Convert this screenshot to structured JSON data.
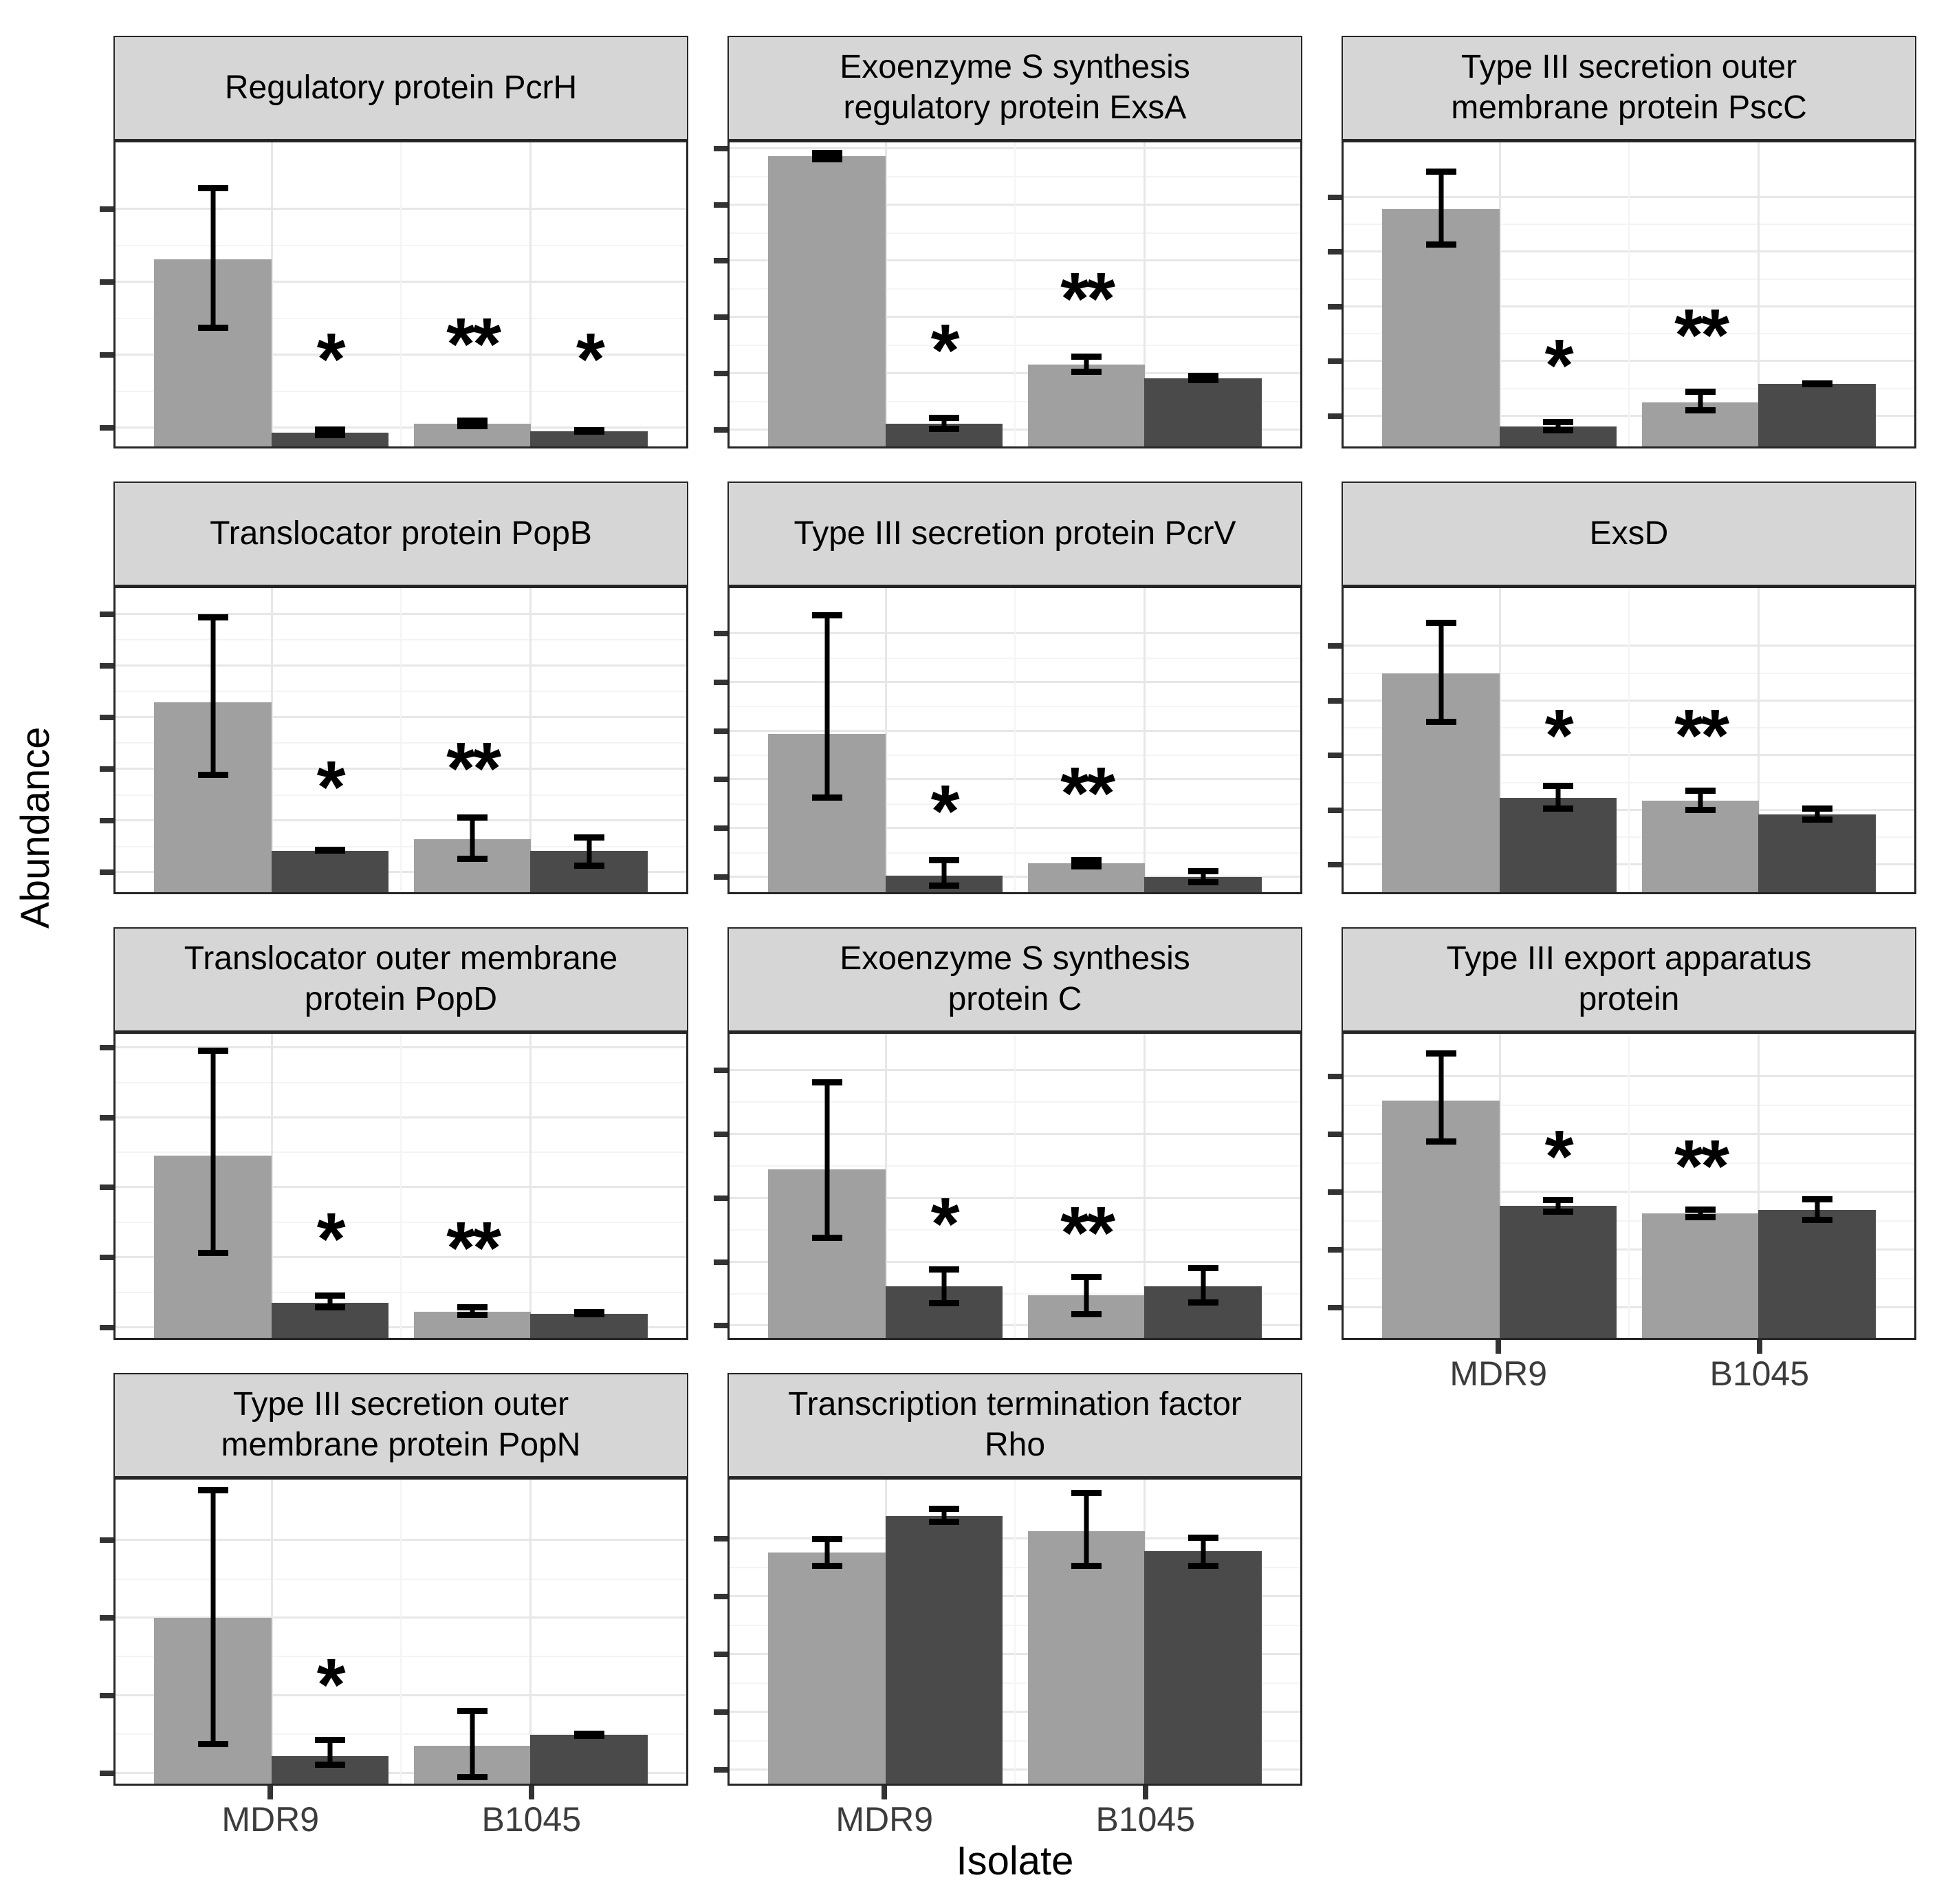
{
  "figure": {
    "y_axis_title": "Abundance",
    "x_axis_title": "Isolate",
    "colors": {
      "bar_light": "#a0a0a0",
      "bar_dark": "#4a4a4a",
      "strip_background": "#d6d6d6",
      "panel_border": "#262626",
      "grid_major": "#e7e7e7",
      "grid_minor": "#f4f4f4",
      "axis_text": "#3c3c3c",
      "error_bar": "#000000",
      "significance_star": "#000000"
    }
  },
  "chart_data": {
    "type": "bar",
    "title": "",
    "xlabel": "Isolate",
    "ylabel": "Abundance",
    "categories": [
      "MDR9",
      "B1045"
    ],
    "series": [
      "light-gray (unlabeled)",
      "dark-gray (unlabeled)"
    ],
    "legend": "none shown",
    "grid": true,
    "y_axis": {
      "tick_labels_shown": false,
      "value_scale": "fraction of panel height (no numeric labels in figure)",
      "range": [
        0,
        1
      ]
    },
    "facet_layout": {
      "columns": 3,
      "rows": 4,
      "last_row_panels": 2
    },
    "facets": [
      {
        "title": "Regulatory protein PcrH",
        "show_x_axis": false,
        "y_ticks": [
          0.06,
          0.3,
          0.54,
          0.78
        ],
        "bars": [
          {
            "category": "MDR9",
            "series": "light-gray",
            "value": 0.615,
            "err_lo": 0.38,
            "err_hi": 0.86
          },
          {
            "category": "MDR9",
            "series": "dark-gray",
            "value": 0.045,
            "err_lo": 0.028,
            "err_hi": 0.065
          },
          {
            "category": "B1045",
            "series": "light-gray",
            "value": 0.075,
            "err_lo": 0.056,
            "err_hi": 0.096
          },
          {
            "category": "B1045",
            "series": "dark-gray",
            "value": 0.05,
            "err_lo": 0.038,
            "err_hi": 0.064
          }
        ],
        "stars": [
          {
            "slot": 1,
            "symbol": "*",
            "y": 0.22
          },
          {
            "slot": 2,
            "symbol": "**",
            "y": 0.27
          },
          {
            "slot": 3,
            "symbol": "*",
            "y": 0.22
          }
        ]
      },
      {
        "title": "Exoenzyme S synthesis regulatory protein ExsA",
        "show_x_axis": false,
        "y_ticks": [
          0.055,
          0.24,
          0.425,
          0.61,
          0.795,
          0.98
        ],
        "bars": [
          {
            "category": "MDR9",
            "series": "light-gray",
            "value": 0.955,
            "err_lo": 0.935,
            "err_hi": 0.975
          },
          {
            "category": "MDR9",
            "series": "dark-gray",
            "value": 0.075,
            "err_lo": 0.048,
            "err_hi": 0.105
          },
          {
            "category": "B1045",
            "series": "light-gray",
            "value": 0.27,
            "err_lo": 0.235,
            "err_hi": 0.305
          },
          {
            "category": "B1045",
            "series": "dark-gray",
            "value": 0.225,
            "err_lo": 0.208,
            "err_hi": 0.243
          }
        ],
        "stars": [
          {
            "slot": 1,
            "symbol": "*",
            "y": 0.25
          },
          {
            "slot": 2,
            "symbol": "**",
            "y": 0.42
          }
        ]
      },
      {
        "title": "Type III secretion outer membrane protein PscC",
        "show_x_axis": false,
        "y_ticks": [
          0.1,
          0.28,
          0.46,
          0.64,
          0.82
        ],
        "bars": [
          {
            "category": "MDR9",
            "series": "light-gray",
            "value": 0.78,
            "err_lo": 0.655,
            "err_hi": 0.915
          },
          {
            "category": "MDR9",
            "series": "dark-gray",
            "value": 0.065,
            "err_lo": 0.044,
            "err_hi": 0.09
          },
          {
            "category": "B1045",
            "series": "light-gray",
            "value": 0.145,
            "err_lo": 0.108,
            "err_hi": 0.19
          },
          {
            "category": "B1045",
            "series": "dark-gray",
            "value": 0.205,
            "err_lo": 0.197,
            "err_hi": 0.216
          }
        ],
        "stars": [
          {
            "slot": 1,
            "symbol": "*",
            "y": 0.2
          },
          {
            "slot": 2,
            "symbol": "**",
            "y": 0.3
          }
        ]
      },
      {
        "title": "Translocator protein PopB",
        "show_x_axis": false,
        "y_ticks": [
          0.065,
          0.235,
          0.405,
          0.575,
          0.745,
          0.915
        ],
        "bars": [
          {
            "category": "MDR9",
            "series": "light-gray",
            "value": 0.625,
            "err_lo": 0.375,
            "err_hi": 0.915
          },
          {
            "category": "MDR9",
            "series": "dark-gray",
            "value": 0.135,
            "err_lo": 0.127,
            "err_hi": 0.149
          },
          {
            "category": "B1045",
            "series": "light-gray",
            "value": 0.175,
            "err_lo": 0.1,
            "err_hi": 0.255
          },
          {
            "category": "B1045",
            "series": "dark-gray",
            "value": 0.135,
            "err_lo": 0.078,
            "err_hi": 0.19
          }
        ],
        "stars": [
          {
            "slot": 1,
            "symbol": "*",
            "y": 0.28
          },
          {
            "slot": 2,
            "symbol": "**",
            "y": 0.34
          }
        ]
      },
      {
        "title": "Type III secretion protein PcrV",
        "show_x_axis": false,
        "y_ticks": [
          0.05,
          0.21,
          0.37,
          0.53,
          0.69,
          0.85
        ],
        "bars": [
          {
            "category": "MDR9",
            "series": "light-gray",
            "value": 0.52,
            "err_lo": 0.3,
            "err_hi": 0.92
          },
          {
            "category": "MDR9",
            "series": "dark-gray",
            "value": 0.055,
            "err_lo": 0.012,
            "err_hi": 0.115
          },
          {
            "category": "B1045",
            "series": "light-gray",
            "value": 0.095,
            "err_lo": 0.075,
            "err_hi": 0.116
          },
          {
            "category": "B1045",
            "series": "dark-gray",
            "value": 0.05,
            "err_lo": 0.022,
            "err_hi": 0.08
          }
        ],
        "stars": [
          {
            "slot": 1,
            "symbol": "*",
            "y": 0.2
          },
          {
            "slot": 2,
            "symbol": "**",
            "y": 0.26
          }
        ]
      },
      {
        "title": "ExsD",
        "show_x_axis": false,
        "y_ticks": [
          0.09,
          0.27,
          0.45,
          0.63,
          0.81
        ],
        "bars": [
          {
            "category": "MDR9",
            "series": "light-gray",
            "value": 0.72,
            "err_lo": 0.55,
            "err_hi": 0.895
          },
          {
            "category": "MDR9",
            "series": "dark-gray",
            "value": 0.31,
            "err_lo": 0.265,
            "err_hi": 0.36
          },
          {
            "category": "B1045",
            "series": "light-gray",
            "value": 0.3,
            "err_lo": 0.26,
            "err_hi": 0.345
          },
          {
            "category": "B1045",
            "series": "dark-gray",
            "value": 0.255,
            "err_lo": 0.228,
            "err_hi": 0.285
          }
        ],
        "stars": [
          {
            "slot": 1,
            "symbol": "*",
            "y": 0.45
          },
          {
            "slot": 2,
            "symbol": "**",
            "y": 0.45
          }
        ]
      },
      {
        "title": "Translocator outer membrane protein PopD",
        "show_x_axis": false,
        "y_ticks": [
          0.035,
          0.265,
          0.495,
          0.725,
          0.955
        ],
        "bars": [
          {
            "category": "MDR9",
            "series": "light-gray",
            "value": 0.6,
            "err_lo": 0.27,
            "err_hi": 0.955
          },
          {
            "category": "MDR9",
            "series": "dark-gray",
            "value": 0.115,
            "err_lo": 0.09,
            "err_hi": 0.15
          },
          {
            "category": "B1045",
            "series": "light-gray",
            "value": 0.085,
            "err_lo": 0.065,
            "err_hi": 0.11
          },
          {
            "category": "B1045",
            "series": "dark-gray",
            "value": 0.08,
            "err_lo": 0.067,
            "err_hi": 0.095
          }
        ],
        "stars": [
          {
            "slot": 1,
            "symbol": "*",
            "y": 0.26
          },
          {
            "slot": 2,
            "symbol": "**",
            "y": 0.23
          }
        ]
      },
      {
        "title": "Exoenzyme S synthesis protein C",
        "show_x_axis": false,
        "y_ticks": [
          0.04,
          0.25,
          0.46,
          0.67,
          0.88
        ],
        "bars": [
          {
            "category": "MDR9",
            "series": "light-gray",
            "value": 0.555,
            "err_lo": 0.32,
            "err_hi": 0.85
          },
          {
            "category": "MDR9",
            "series": "dark-gray",
            "value": 0.17,
            "err_lo": 0.105,
            "err_hi": 0.235
          },
          {
            "category": "B1045",
            "series": "light-gray",
            "value": 0.14,
            "err_lo": 0.068,
            "err_hi": 0.21
          },
          {
            "category": "B1045",
            "series": "dark-gray",
            "value": 0.17,
            "err_lo": 0.107,
            "err_hi": 0.24
          }
        ],
        "stars": [
          {
            "slot": 1,
            "symbol": "*",
            "y": 0.31
          },
          {
            "slot": 2,
            "symbol": "**",
            "y": 0.28
          }
        ]
      },
      {
        "title": "Type III export apparatus protein",
        "show_x_axis": true,
        "y_ticks": [
          0.1,
          0.29,
          0.48,
          0.67,
          0.86
        ],
        "bars": [
          {
            "category": "MDR9",
            "series": "light-gray",
            "value": 0.78,
            "err_lo": 0.635,
            "err_hi": 0.945
          },
          {
            "category": "MDR9",
            "series": "dark-gray",
            "value": 0.435,
            "err_lo": 0.405,
            "err_hi": 0.463
          },
          {
            "category": "B1045",
            "series": "light-gray",
            "value": 0.41,
            "err_lo": 0.388,
            "err_hi": 0.432
          },
          {
            "category": "B1045",
            "series": "dark-gray",
            "value": 0.42,
            "err_lo": 0.378,
            "err_hi": 0.465
          }
        ],
        "stars": [
          {
            "slot": 1,
            "symbol": "*",
            "y": 0.53
          },
          {
            "slot": 2,
            "symbol": "**",
            "y": 0.5
          }
        ]
      },
      {
        "title": "Type III secretion outer membrane protein PopN",
        "show_x_axis": true,
        "y_ticks": [
          0.035,
          0.29,
          0.545,
          0.8
        ],
        "bars": [
          {
            "category": "MDR9",
            "series": "light-gray",
            "value": 0.545,
            "err_lo": 0.12,
            "err_hi": 0.975
          },
          {
            "category": "MDR9",
            "series": "dark-gray",
            "value": 0.09,
            "err_lo": 0.052,
            "err_hi": 0.155
          },
          {
            "category": "B1045",
            "series": "light-gray",
            "value": 0.125,
            "err_lo": 0.012,
            "err_hi": 0.25
          },
          {
            "category": "B1045",
            "series": "dark-gray",
            "value": 0.16,
            "err_lo": 0.154,
            "err_hi": 0.168
          }
        ],
        "stars": [
          {
            "slot": 1,
            "symbol": "*",
            "y": 0.26
          }
        ]
      },
      {
        "title": "Transcription termination factor Rho",
        "show_x_axis": true,
        "y_ticks": [
          0.045,
          0.235,
          0.425,
          0.615,
          0.805
        ],
        "bars": [
          {
            "category": "MDR9",
            "series": "light-gray",
            "value": 0.76,
            "err_lo": 0.705,
            "err_hi": 0.815
          },
          {
            "category": "MDR9",
            "series": "dark-gray",
            "value": 0.88,
            "err_lo": 0.85,
            "err_hi": 0.915
          },
          {
            "category": "B1045",
            "series": "light-gray",
            "value": 0.83,
            "err_lo": 0.705,
            "err_hi": 0.965
          },
          {
            "category": "B1045",
            "series": "dark-gray",
            "value": 0.765,
            "err_lo": 0.705,
            "err_hi": 0.82
          }
        ],
        "stars": []
      }
    ]
  }
}
